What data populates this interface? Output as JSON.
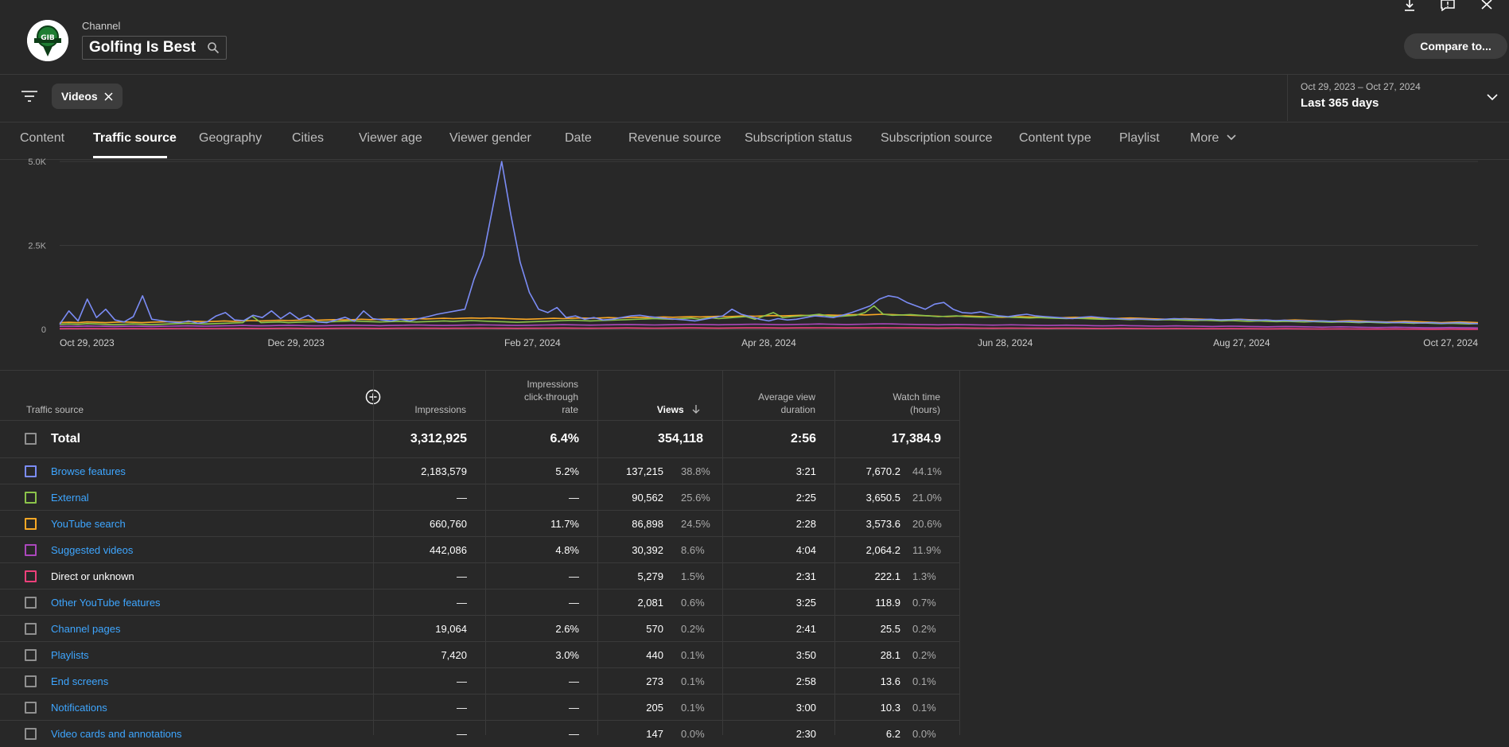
{
  "header": {
    "channel_label": "Channel",
    "channel_name": "Golfing Is Best",
    "compare_label": "Compare to..."
  },
  "filter": {
    "chip_label": "Videos",
    "date_range": "Oct 29, 2023 – Oct 27, 2024",
    "date_label": "Last 365 days"
  },
  "tabs": [
    {
      "label": "Content"
    },
    {
      "label": "Traffic source"
    },
    {
      "label": "Geography"
    },
    {
      "label": "Cities"
    },
    {
      "label": "Viewer age"
    },
    {
      "label": "Viewer gender"
    },
    {
      "label": "Date"
    },
    {
      "label": "Revenue source"
    },
    {
      "label": "Subscription status"
    },
    {
      "label": "Subscription source"
    },
    {
      "label": "Content type"
    },
    {
      "label": "Playlist"
    },
    {
      "label": "More"
    }
  ],
  "chart_data": {
    "type": "line",
    "y_ticks": [
      "5.0K",
      "2.5K",
      "0"
    ],
    "ylim": [
      0,
      5000
    ],
    "x_ticks": [
      "Oct 29, 2023",
      "Dec 29, 2023",
      "Feb 27, 2024",
      "Apr 28, 2024",
      "Jun 28, 2024",
      "Aug 27, 2024",
      "Oct 27, 2024"
    ],
    "series": [
      {
        "color": "#7b8cf5",
        "values": [
          150,
          550,
          250,
          900,
          350,
          600,
          280,
          220,
          380,
          1000,
          300,
          260,
          220,
          200,
          250,
          180,
          220,
          400,
          500,
          280,
          260,
          420,
          350,
          550,
          320,
          500,
          300,
          420,
          220,
          200,
          280,
          360,
          240,
          550,
          320,
          280,
          250,
          300,
          250,
          320,
          380,
          450,
          500,
          550,
          600,
          1500,
          2200,
          3600,
          5000,
          3400,
          2000,
          1100,
          600,
          500,
          650,
          350,
          400,
          300,
          350,
          280,
          300,
          350,
          400,
          420,
          380,
          350,
          320,
          300,
          280,
          250,
          300,
          350,
          400,
          600,
          450,
          380,
          300,
          250,
          320,
          280,
          300,
          350,
          400,
          380,
          350,
          420,
          500,
          600,
          700,
          900,
          1000,
          950,
          800,
          700,
          600,
          750,
          800,
          600,
          500,
          480,
          520,
          450,
          400,
          380,
          420,
          450,
          400,
          380,
          360,
          340,
          320,
          360,
          380,
          350,
          330,
          320,
          300,
          310,
          300,
          290,
          300,
          320,
          310,
          300,
          290,
          300,
          280,
          290,
          300,
          280,
          270,
          280,
          260,
          270,
          250,
          260,
          240,
          250,
          240,
          230,
          240,
          220,
          230,
          220,
          210,
          200,
          210,
          200,
          190,
          200,
          180,
          190,
          200,
          180,
          170
        ]
      },
      {
        "color": "#8bc34a",
        "values": [
          150,
          160,
          150,
          170,
          160,
          150,
          140,
          150,
          160,
          150,
          140,
          150,
          160,
          170,
          180,
          170,
          160,
          170,
          180,
          190,
          200,
          400,
          200,
          210,
          220,
          200,
          210,
          220,
          230,
          220,
          230,
          240,
          250,
          240,
          230,
          220,
          230,
          240,
          230,
          220,
          230,
          240,
          250,
          240,
          250,
          260,
          250,
          240,
          230,
          220,
          210,
          220,
          230,
          240,
          250,
          260,
          270,
          260,
          250,
          260,
          270,
          280,
          290,
          300,
          310,
          320,
          310,
          300,
          320,
          340,
          300,
          350,
          320,
          340,
          360,
          380,
          300,
          400,
          500,
          350,
          380,
          400,
          420,
          450,
          400,
          380,
          400,
          420,
          500,
          700,
          450,
          420,
          430,
          440,
          420,
          400,
          380,
          390,
          400,
          380,
          370,
          360,
          370,
          380,
          360,
          350,
          340,
          350,
          340,
          330,
          320,
          330,
          320,
          310,
          300,
          310,
          300,
          290,
          300,
          290,
          280,
          290,
          280,
          270,
          260,
          270,
          260,
          250,
          260,
          250,
          240,
          250,
          240,
          230,
          240,
          230,
          220,
          230,
          220,
          210,
          220,
          210,
          200,
          210,
          200,
          190,
          200,
          190,
          180,
          190,
          180,
          170,
          180,
          170,
          160,
          170
        ]
      },
      {
        "color": "#f9a825",
        "values": [
          200,
          210,
          200,
          220,
          210,
          200,
          210,
          220,
          210,
          200,
          210,
          220,
          230,
          220,
          230,
          240,
          230,
          240,
          250,
          240,
          250,
          260,
          250,
          260,
          270,
          260,
          270,
          280,
          270,
          280,
          290,
          280,
          290,
          300,
          290,
          300,
          310,
          300,
          310,
          320,
          310,
          320,
          330,
          320,
          330,
          340,
          330,
          340,
          330,
          320,
          310,
          300,
          310,
          320,
          330,
          320,
          330,
          340,
          330,
          340,
          350,
          340,
          350,
          360,
          350,
          360,
          370,
          360,
          370,
          380,
          370,
          380,
          390,
          380,
          390,
          400,
          390,
          400,
          410,
          400,
          410,
          420,
          410,
          420,
          430,
          420,
          430,
          440,
          430,
          440,
          450,
          440,
          430,
          420,
          410,
          400,
          390,
          380,
          390,
          400,
          390,
          380,
          370,
          360,
          370,
          380,
          370,
          360,
          350,
          340,
          350,
          360,
          350,
          340,
          330,
          320,
          330,
          340,
          330,
          320,
          310,
          300,
          310,
          320,
          310,
          300,
          290,
          280,
          290,
          300,
          290,
          280,
          270,
          260,
          270,
          280,
          270,
          260,
          250,
          240,
          250,
          260,
          250,
          240,
          230,
          220,
          230,
          240,
          230,
          220,
          210,
          200,
          210,
          220,
          210,
          200
        ]
      },
      {
        "color": "#ab47bc",
        "values": [
          90,
          95,
          90,
          100,
          95,
          90,
          85,
          90,
          95,
          90,
          85,
          90,
          95,
          100,
          105,
          100,
          95,
          100,
          105,
          110,
          115,
          110,
          105,
          110,
          115,
          120,
          115,
          110,
          105,
          110,
          115,
          120,
          125,
          120,
          115,
          110,
          115,
          120,
          125,
          130,
          125,
          120,
          115,
          120,
          125,
          130,
          135,
          130,
          125,
          120,
          115,
          120,
          125,
          130,
          135,
          140,
          135,
          130,
          125,
          130,
          135,
          140,
          145,
          140,
          135,
          130,
          135,
          140,
          145,
          150,
          145,
          140,
          135,
          140,
          145,
          150,
          155,
          150,
          145,
          140,
          145,
          150,
          155,
          160,
          155,
          150,
          145,
          150,
          155,
          160,
          165,
          160,
          155,
          150,
          145,
          140,
          135,
          140,
          145,
          140,
          135,
          130,
          125,
          130,
          135,
          130,
          125,
          120,
          115,
          120,
          125,
          120,
          115,
          110,
          105,
          110,
          115,
          110,
          105,
          100,
          95,
          100,
          105,
          100,
          95,
          90,
          85,
          90,
          95,
          90,
          85,
          80,
          75,
          80,
          85,
          80,
          75,
          70,
          65,
          70,
          75,
          70,
          65,
          60,
          55,
          60,
          65,
          60,
          55,
          50,
          45,
          50,
          55,
          50,
          45,
          40
        ]
      },
      {
        "color": "#ec407a",
        "values": [
          20,
          22,
          20,
          24,
          22,
          20,
          18,
          20,
          22,
          20,
          18,
          20,
          22,
          24,
          26,
          24,
          22,
          24,
          26,
          28,
          30,
          28,
          26,
          28,
          30,
          32,
          30,
          28,
          26,
          28,
          30,
          32,
          34,
          32,
          30,
          28,
          30,
          32,
          34,
          36,
          34,
          32,
          30,
          32,
          34,
          36,
          38,
          36,
          34,
          32,
          30,
          32,
          34,
          36,
          38,
          40,
          38,
          36,
          34,
          36,
          38,
          40,
          42,
          40,
          38,
          36,
          38,
          40,
          42,
          44,
          42,
          40,
          38,
          40,
          42,
          44,
          46,
          44,
          42,
          40,
          42,
          44,
          46,
          48,
          46,
          44,
          42,
          44,
          46,
          48,
          50,
          48,
          46,
          44,
          42,
          40,
          38,
          40,
          42,
          40,
          38,
          36,
          34,
          36,
          38,
          36,
          34,
          32,
          30,
          32,
          34,
          32,
          30,
          28,
          26,
          28,
          30,
          28,
          26,
          24,
          22,
          24,
          26,
          24,
          22,
          20,
          18,
          20,
          22,
          20,
          18,
          16,
          14,
          16,
          18,
          16,
          14,
          12,
          10,
          12,
          14,
          12,
          10,
          8,
          6,
          8,
          10,
          8,
          6,
          4,
          2,
          4,
          6,
          4,
          2,
          0
        ]
      }
    ]
  },
  "table": {
    "headers": {
      "source": "Traffic source",
      "impressions": "Impressions",
      "ctr": [
        "Impressions",
        "click-through",
        "rate"
      ],
      "views": "Views",
      "avd": [
        "Average view",
        "duration"
      ],
      "watch": [
        "Watch time",
        "(hours)"
      ]
    },
    "total": {
      "label": "Total",
      "impressions": "3,312,925",
      "ctr": "6.4%",
      "views": "354,118",
      "avd": "2:56",
      "watch": "17,384.9"
    },
    "rows": [
      {
        "label": "Browse features",
        "color": "#7b8cf5",
        "link": true,
        "impressions": "2,183,579",
        "ctr": "5.2%",
        "views": "137,215",
        "views_pct": "38.8%",
        "avd": "3:21",
        "watch": "7,670.2",
        "watch_pct": "44.1%"
      },
      {
        "label": "External",
        "color": "#8bc34a",
        "link": true,
        "impressions": "—",
        "ctr": "—",
        "views": "90,562",
        "views_pct": "25.6%",
        "avd": "2:25",
        "watch": "3,650.5",
        "watch_pct": "21.0%"
      },
      {
        "label": "YouTube search",
        "color": "#f9a825",
        "link": true,
        "impressions": "660,760",
        "ctr": "11.7%",
        "views": "86,898",
        "views_pct": "24.5%",
        "avd": "2:28",
        "watch": "3,573.6",
        "watch_pct": "20.6%"
      },
      {
        "label": "Suggested videos",
        "color": "#ab47bc",
        "link": true,
        "impressions": "442,086",
        "ctr": "4.8%",
        "views": "30,392",
        "views_pct": "8.6%",
        "avd": "4:04",
        "watch": "2,064.2",
        "watch_pct": "11.9%"
      },
      {
        "label": "Direct or unknown",
        "color": "#ec407a",
        "link": false,
        "impressions": "—",
        "ctr": "—",
        "views": "5,279",
        "views_pct": "1.5%",
        "avd": "2:31",
        "watch": "222.1",
        "watch_pct": "1.3%"
      },
      {
        "label": "Other YouTube features",
        "color": "#909090",
        "link": true,
        "impressions": "—",
        "ctr": "—",
        "views": "2,081",
        "views_pct": "0.6%",
        "avd": "3:25",
        "watch": "118.9",
        "watch_pct": "0.7%"
      },
      {
        "label": "Channel pages",
        "color": "#909090",
        "link": true,
        "impressions": "19,064",
        "ctr": "2.6%",
        "views": "570",
        "views_pct": "0.2%",
        "avd": "2:41",
        "watch": "25.5",
        "watch_pct": "0.2%"
      },
      {
        "label": "Playlists",
        "color": "#909090",
        "link": true,
        "impressions": "7,420",
        "ctr": "3.0%",
        "views": "440",
        "views_pct": "0.1%",
        "avd": "3:50",
        "watch": "28.1",
        "watch_pct": "0.2%"
      },
      {
        "label": "End screens",
        "color": "#909090",
        "link": true,
        "impressions": "—",
        "ctr": "—",
        "views": "273",
        "views_pct": "0.1%",
        "avd": "2:58",
        "watch": "13.6",
        "watch_pct": "0.1%"
      },
      {
        "label": "Notifications",
        "color": "#909090",
        "link": true,
        "impressions": "—",
        "ctr": "—",
        "views": "205",
        "views_pct": "0.1%",
        "avd": "3:00",
        "watch": "10.3",
        "watch_pct": "0.1%"
      },
      {
        "label": "Video cards and annotations",
        "color": "#909090",
        "link": true,
        "impressions": "—",
        "ctr": "—",
        "views": "147",
        "views_pct": "0.0%",
        "avd": "2:30",
        "watch": "6.2",
        "watch_pct": "0.0%"
      }
    ]
  }
}
